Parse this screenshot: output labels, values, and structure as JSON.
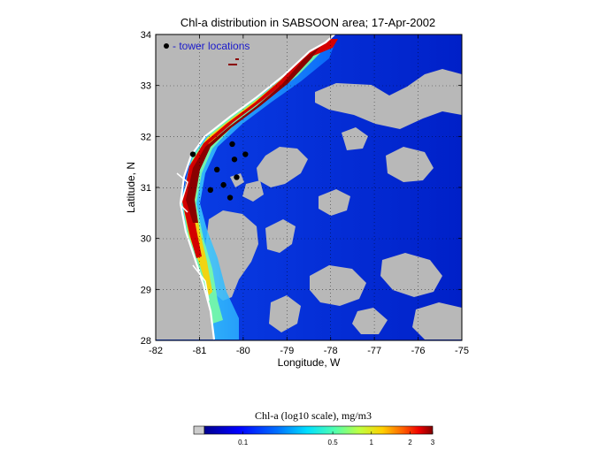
{
  "chart_data": {
    "type": "heatmap",
    "title": "Chl-a distribution in SABSOON area; 17-Apr-2002",
    "xlabel": "Longitude, W",
    "ylabel": "Latitude, N",
    "xlim": [
      -82,
      -75
    ],
    "ylim": [
      28,
      34
    ],
    "x_ticks": [
      "-82",
      "-81",
      "-80",
      "-79",
      "-78",
      "-77",
      "-76",
      "-75"
    ],
    "y_ticks": [
      "28",
      "29",
      "30",
      "31",
      "32",
      "33",
      "34"
    ],
    "grid": "dotted",
    "legend": {
      "label": "- tower locations",
      "position": "top-left"
    },
    "tower_locations": [
      {
        "lon": -80.25,
        "lat": 31.85
      },
      {
        "lon": -79.95,
        "lat": 31.65
      },
      {
        "lon": -80.2,
        "lat": 31.55
      },
      {
        "lon": -80.6,
        "lat": 31.35
      },
      {
        "lon": -80.15,
        "lat": 31.2
      },
      {
        "lon": -80.45,
        "lat": 31.05
      },
      {
        "lon": -80.75,
        "lat": 30.95
      },
      {
        "lon": -80.3,
        "lat": 30.8
      },
      {
        "lon": -81.15,
        "lat": 31.65
      }
    ],
    "colorbar": {
      "title": "Chl-a (log10 scale), mg/m3",
      "ticks": [
        "0.1",
        "0.5",
        "1",
        "2",
        "3"
      ],
      "colors": [
        "#cccccc",
        "#00008f",
        "#0000ff",
        "#0070ff",
        "#00dfff",
        "#50ffaf",
        "#bfff40",
        "#ffd000",
        "#ff6000",
        "#ef0000",
        "#800000"
      ]
    }
  }
}
